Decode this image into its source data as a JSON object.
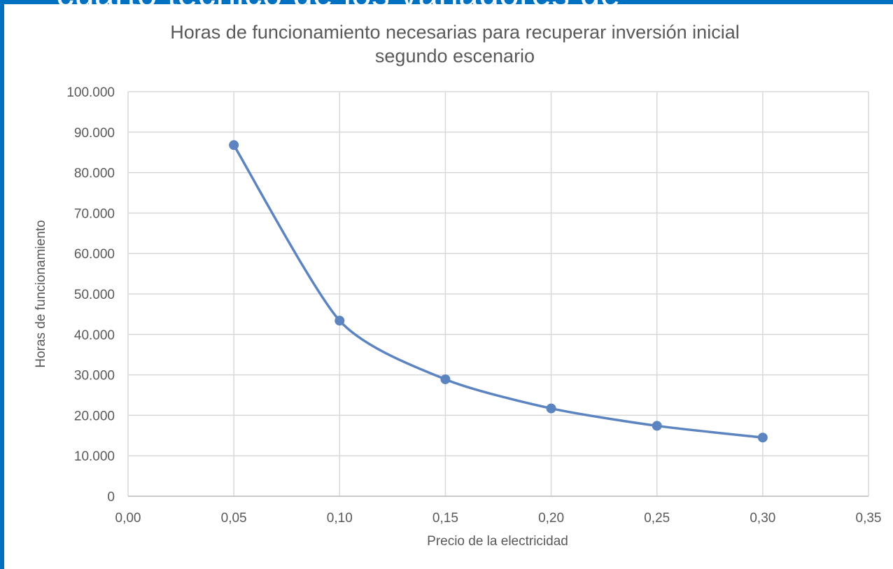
{
  "overlay_text": "cuarto técnico de los variadores de",
  "chart_data": {
    "type": "scatter",
    "title": [
      "Horas de funcionamiento necesarias para recuperar inversión inicial",
      "segundo escenario"
    ],
    "xlabel": "Precio de la electricidad",
    "ylabel": "Horas de funcionamiento",
    "xlim": [
      0,
      0.35
    ],
    "ylim": [
      0,
      100000
    ],
    "x_ticks": [
      "0,00",
      "0,05",
      "0,10",
      "0,15",
      "0,20",
      "0,25",
      "0,30",
      "0,35"
    ],
    "y_ticks": [
      "0",
      "10.000",
      "20.000",
      "30.000",
      "40.000",
      "50.000",
      "60.000",
      "70.000",
      "80.000",
      "90.000",
      "100.000"
    ],
    "x_tick_values": [
      0,
      0.05,
      0.1,
      0.15,
      0.2,
      0.25,
      0.3,
      0.35
    ],
    "y_tick_values": [
      0,
      10000,
      20000,
      30000,
      40000,
      50000,
      60000,
      70000,
      80000,
      90000,
      100000
    ],
    "grid": true,
    "line_style": "smooth-lines-with-markers",
    "series": [
      {
        "x": [
          0.05,
          0.1,
          0.15,
          0.2,
          0.25,
          0.3
        ],
        "y": [
          86800,
          43400,
          28900,
          21700,
          17400,
          14500
        ],
        "color": "#5b84c0"
      }
    ],
    "background_color": "#0070c0"
  }
}
